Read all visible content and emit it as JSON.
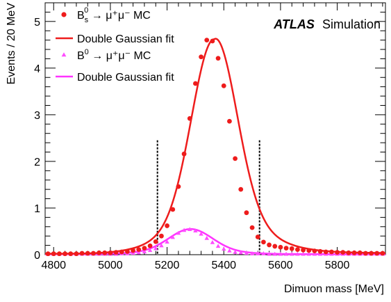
{
  "chart_data": {
    "type": "scatter",
    "xlabel": "Dimuon mass [MeV]",
    "ylabel": "Events / 20 MeV",
    "xlim": [
      4770,
      5970
    ],
    "ylim": [
      0,
      5.4
    ],
    "x_ticks": [
      4800,
      5000,
      5200,
      5400,
      5600,
      5800
    ],
    "y_ticks": [
      0,
      1,
      2,
      3,
      4,
      5
    ],
    "grid": false,
    "legend_position": "top-left",
    "annotation": {
      "bold": "ATLAS",
      "text": "Simulation"
    },
    "vlines": [
      5166,
      5526
    ],
    "series": [
      {
        "kind": "points",
        "marker": "circle",
        "color": "#ee1c1c",
        "x": [
          4780,
          4800,
          4820,
          4840,
          4860,
          4880,
          4900,
          4920,
          4940,
          4960,
          4980,
          5000,
          5020,
          5040,
          5060,
          5080,
          5100,
          5120,
          5140,
          5160,
          5180,
          5200,
          5220,
          5240,
          5260,
          5280,
          5300,
          5320,
          5340,
          5360,
          5380,
          5400,
          5420,
          5440,
          5460,
          5480,
          5500,
          5520,
          5540,
          5560,
          5580,
          5600,
          5620,
          5640,
          5660,
          5680,
          5700,
          5720,
          5740,
          5760,
          5780,
          5800,
          5820,
          5840,
          5860,
          5880,
          5900,
          5920,
          5940,
          5960
        ],
        "y": [
          0.02,
          0.02,
          0.02,
          0.02,
          0.02,
          0.02,
          0.03,
          0.03,
          0.03,
          0.04,
          0.04,
          0.04,
          0.05,
          0.06,
          0.07,
          0.09,
          0.11,
          0.14,
          0.19,
          0.28,
          0.4,
          0.62,
          0.97,
          1.46,
          2.16,
          2.92,
          3.67,
          4.24,
          4.6,
          4.58,
          4.21,
          3.62,
          2.86,
          2.06,
          1.4,
          0.9,
          0.58,
          0.38,
          0.27,
          0.21,
          0.18,
          0.16,
          0.14,
          0.13,
          0.11,
          0.1,
          0.09,
          0.08,
          0.07,
          0.06,
          0.06,
          0.05,
          0.05,
          0.04,
          0.04,
          0.04,
          0.03,
          0.03,
          0.03,
          0.03
        ]
      },
      {
        "kind": "line",
        "color": "#ee1c1c",
        "fit": {
          "mean": 5366,
          "sigma1": 78,
          "amp1": 3.9,
          "sigma2": 150,
          "amp2": 0.7,
          "tail_amp": 0.16,
          "tail_decay": 260,
          "base": 0.02
        }
      },
      {
        "kind": "points",
        "marker": "triangle",
        "color": "#ff4dff",
        "x": [
          4780,
          4800,
          4820,
          4840,
          4860,
          4880,
          4900,
          4920,
          4940,
          4960,
          4980,
          5000,
          5020,
          5040,
          5060,
          5080,
          5100,
          5120,
          5140,
          5160,
          5180,
          5200,
          5220,
          5240,
          5260,
          5280,
          5300,
          5320,
          5340,
          5360,
          5380,
          5400,
          5420,
          5440,
          5460,
          5480,
          5500,
          5520,
          5540,
          5560,
          5580,
          5600,
          5620,
          5640,
          5660,
          5680,
          5700,
          5720,
          5740,
          5760,
          5780,
          5800,
          5820,
          5840,
          5860,
          5880,
          5900,
          5920,
          5940,
          5960
        ],
        "y": [
          0.01,
          0.01,
          0.01,
          0.01,
          0.01,
          0.01,
          0.01,
          0.01,
          0.01,
          0.01,
          0.01,
          0.01,
          0.01,
          0.02,
          0.02,
          0.03,
          0.04,
          0.06,
          0.09,
          0.13,
          0.19,
          0.27,
          0.37,
          0.46,
          0.52,
          0.54,
          0.51,
          0.44,
          0.35,
          0.26,
          0.18,
          0.12,
          0.08,
          0.05,
          0.04,
          0.03,
          0.02,
          0.02,
          0.02,
          0.01,
          0.01,
          0.01,
          0.01,
          0.01,
          0.01,
          0.01,
          0.01,
          0.01,
          0.01,
          0.01,
          0.01,
          0.01,
          0.01,
          0.01,
          0.01,
          0.01,
          0.01,
          0.01,
          0.01,
          0.01
        ]
      },
      {
        "kind": "line",
        "color": "#ff33ff",
        "fit": {
          "mean": 5283,
          "sigma1": 75,
          "amp1": 0.46,
          "sigma2": 140,
          "amp2": 0.08,
          "tail_amp": 0.0,
          "tail_decay": 260,
          "base": 0.01
        }
      }
    ],
    "legend": [
      {
        "marker": "circle",
        "color": "#ee1c1c",
        "label": "B_s^0 → μ⁺μ⁻ MC",
        "base": "B",
        "sub": "s",
        "sup": "0",
        "rest": " → μ⁺μ⁻ MC"
      },
      {
        "marker": "line",
        "color": "#ee1c1c",
        "label": "Double Gaussian fit"
      },
      {
        "marker": "triangle",
        "color": "#ff4dff",
        "label": "B^0 → μ⁺μ⁻ MC",
        "base": "B",
        "sup": "0",
        "rest": " → μ⁺μ⁻ MC"
      },
      {
        "marker": "line",
        "color": "#ff33ff",
        "label": "Double Gaussian fit"
      }
    ]
  }
}
